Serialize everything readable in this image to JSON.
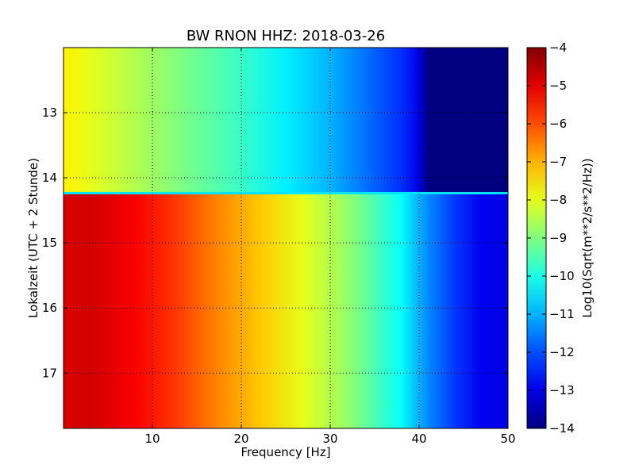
{
  "chart_data": {
    "type": "heatmap",
    "title": "BW RNON HHZ: 2018-03-26",
    "xlabel": "Frequency [Hz]",
    "ylabel": "Lokalzeit (UTC + 2 Stunde)",
    "xlim": [
      0,
      50
    ],
    "ylim": [
      17.85,
      12.0
    ],
    "x_ticks": [
      10,
      20,
      30,
      40,
      50
    ],
    "x_tick_labels": [
      "10",
      "20",
      "30",
      "40",
      "50"
    ],
    "y_ticks": [
      13,
      14,
      15,
      16,
      17
    ],
    "y_tick_labels": [
      "13",
      "14",
      "15",
      "16",
      "17"
    ],
    "grid": true,
    "colormap": "jet",
    "colorbar": {
      "label": "Log10(Sqrt(m**2/s**2/Hz))",
      "range": [
        -14,
        -4
      ],
      "ticks": [
        -4,
        -5,
        -6,
        -7,
        -8,
        -9,
        -10,
        -11,
        -12,
        -13,
        -14
      ],
      "tick_labels": [
        "−4",
        "−5",
        "−6",
        "−7",
        "−8",
        "−9",
        "−10",
        "−11",
        "−12",
        "−13",
        "−14"
      ]
    },
    "segments": [
      {
        "time_range": [
          12.0,
          14.23
        ],
        "profile_freq": [
          0,
          3,
          10,
          15,
          20,
          25,
          30,
          35,
          38,
          40,
          41,
          50
        ],
        "profile_value": [
          -7.6,
          -8.0,
          -8.7,
          -9.2,
          -9.7,
          -10.4,
          -11.0,
          -11.8,
          -12.3,
          -13.0,
          -14.0,
          -14.0
        ]
      },
      {
        "time_range": [
          14.23,
          17.85
        ],
        "profile_freq": [
          0,
          3,
          8,
          12,
          17,
          22,
          27,
          32,
          38,
          41,
          44,
          47,
          50
        ],
        "profile_value": [
          -4.9,
          -4.8,
          -5.2,
          -5.7,
          -6.5,
          -7.2,
          -8.0,
          -8.8,
          -10.2,
          -11.4,
          -12.2,
          -12.9,
          -13.0
        ]
      }
    ],
    "transition_line": {
      "time": 14.23,
      "value": -10.5
    }
  }
}
